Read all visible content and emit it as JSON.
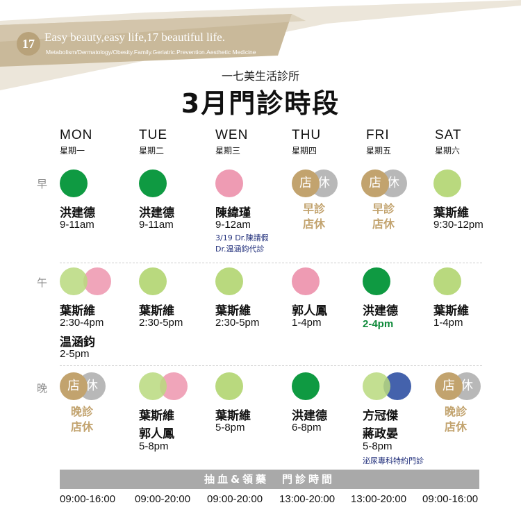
{
  "header": {
    "logo_text": "17",
    "tagline": "Easy beauty,easy life,17 beautiful life.",
    "subtagline": "Metabolism/Dermatology/Obesity.Family.Geriatric.Prevention.Aesthetic Medicine",
    "clinic_name": "一七美生活診所",
    "title": "3月門診時段"
  },
  "colors": {
    "green_dark": "#0f9a42",
    "green_light": "#b9d97e",
    "pink": "#ee9bb3",
    "blue": "#3a5aa8",
    "gold": "#c2a36e",
    "gray": "#b8b8b8",
    "bar_gray": "#a9a9a9"
  },
  "days": [
    {
      "en": "MON",
      "zh": "星期一"
    },
    {
      "en": "TUE",
      "zh": "星期二"
    },
    {
      "en": "WEN",
      "zh": "星期三"
    },
    {
      "en": "THU",
      "zh": "星期四"
    },
    {
      "en": "FRI",
      "zh": "星期五"
    },
    {
      "en": "SAT",
      "zh": "星期六"
    }
  ],
  "periods": {
    "morning": "早",
    "afternoon": "午",
    "evening": "晚"
  },
  "closed_label": {
    "store": "店",
    "rest": "休"
  },
  "morning": {
    "mon": {
      "name": "洪建德",
      "time": "9-11am"
    },
    "tue": {
      "name": "洪建德",
      "time": "9-11am"
    },
    "wen": {
      "name": "陳緯瑾",
      "time": "9-12am",
      "note1": "3/19 Dr.陳請假",
      "note2": "Dr.温涵鈞代診"
    },
    "thu": {
      "closed_line1": "早診",
      "closed_line2": "店休"
    },
    "fri": {
      "closed_line1": "早診",
      "closed_line2": "店休"
    },
    "sat": {
      "name": "葉斯維",
      "time": "9:30-12pm"
    }
  },
  "afternoon": {
    "mon": {
      "name": "葉斯維",
      "time": "2:30-4pm",
      "name2": "温涵鈞",
      "time2": "2-5pm"
    },
    "tue": {
      "name": "葉斯維",
      "time": "2:30-5pm"
    },
    "wen": {
      "name": "葉斯維",
      "time": "2:30-5pm"
    },
    "thu": {
      "name": "郭人鳳",
      "time": "1-4pm"
    },
    "fri": {
      "name": "洪建德",
      "time": "2-4pm"
    },
    "sat": {
      "name": "葉斯維",
      "time": "1-4pm"
    }
  },
  "evening": {
    "mon": {
      "closed_line1": "晚診",
      "closed_line2": "店休"
    },
    "tue": {
      "name": "葉斯維",
      "name2": "郭人鳳",
      "time": "5-8pm"
    },
    "wen": {
      "name": "葉斯維",
      "time": "5-8pm"
    },
    "thu": {
      "name": "洪建德",
      "time": "6-8pm"
    },
    "fri": {
      "name": "方冠傑",
      "name2": "蔣政晏",
      "time": "5-8pm",
      "note": "泌尿專科特約門診"
    },
    "sat": {
      "closed_line1": "晚診",
      "closed_line2": "店休"
    }
  },
  "blood_draw": {
    "label": "抽血&領藥　門診時間",
    "hours": [
      "09:00-16:00",
      "09:00-20:00",
      "09:00-20:00",
      "13:00-20:00",
      "13:00-20:00",
      "09:00-16:00"
    ]
  }
}
